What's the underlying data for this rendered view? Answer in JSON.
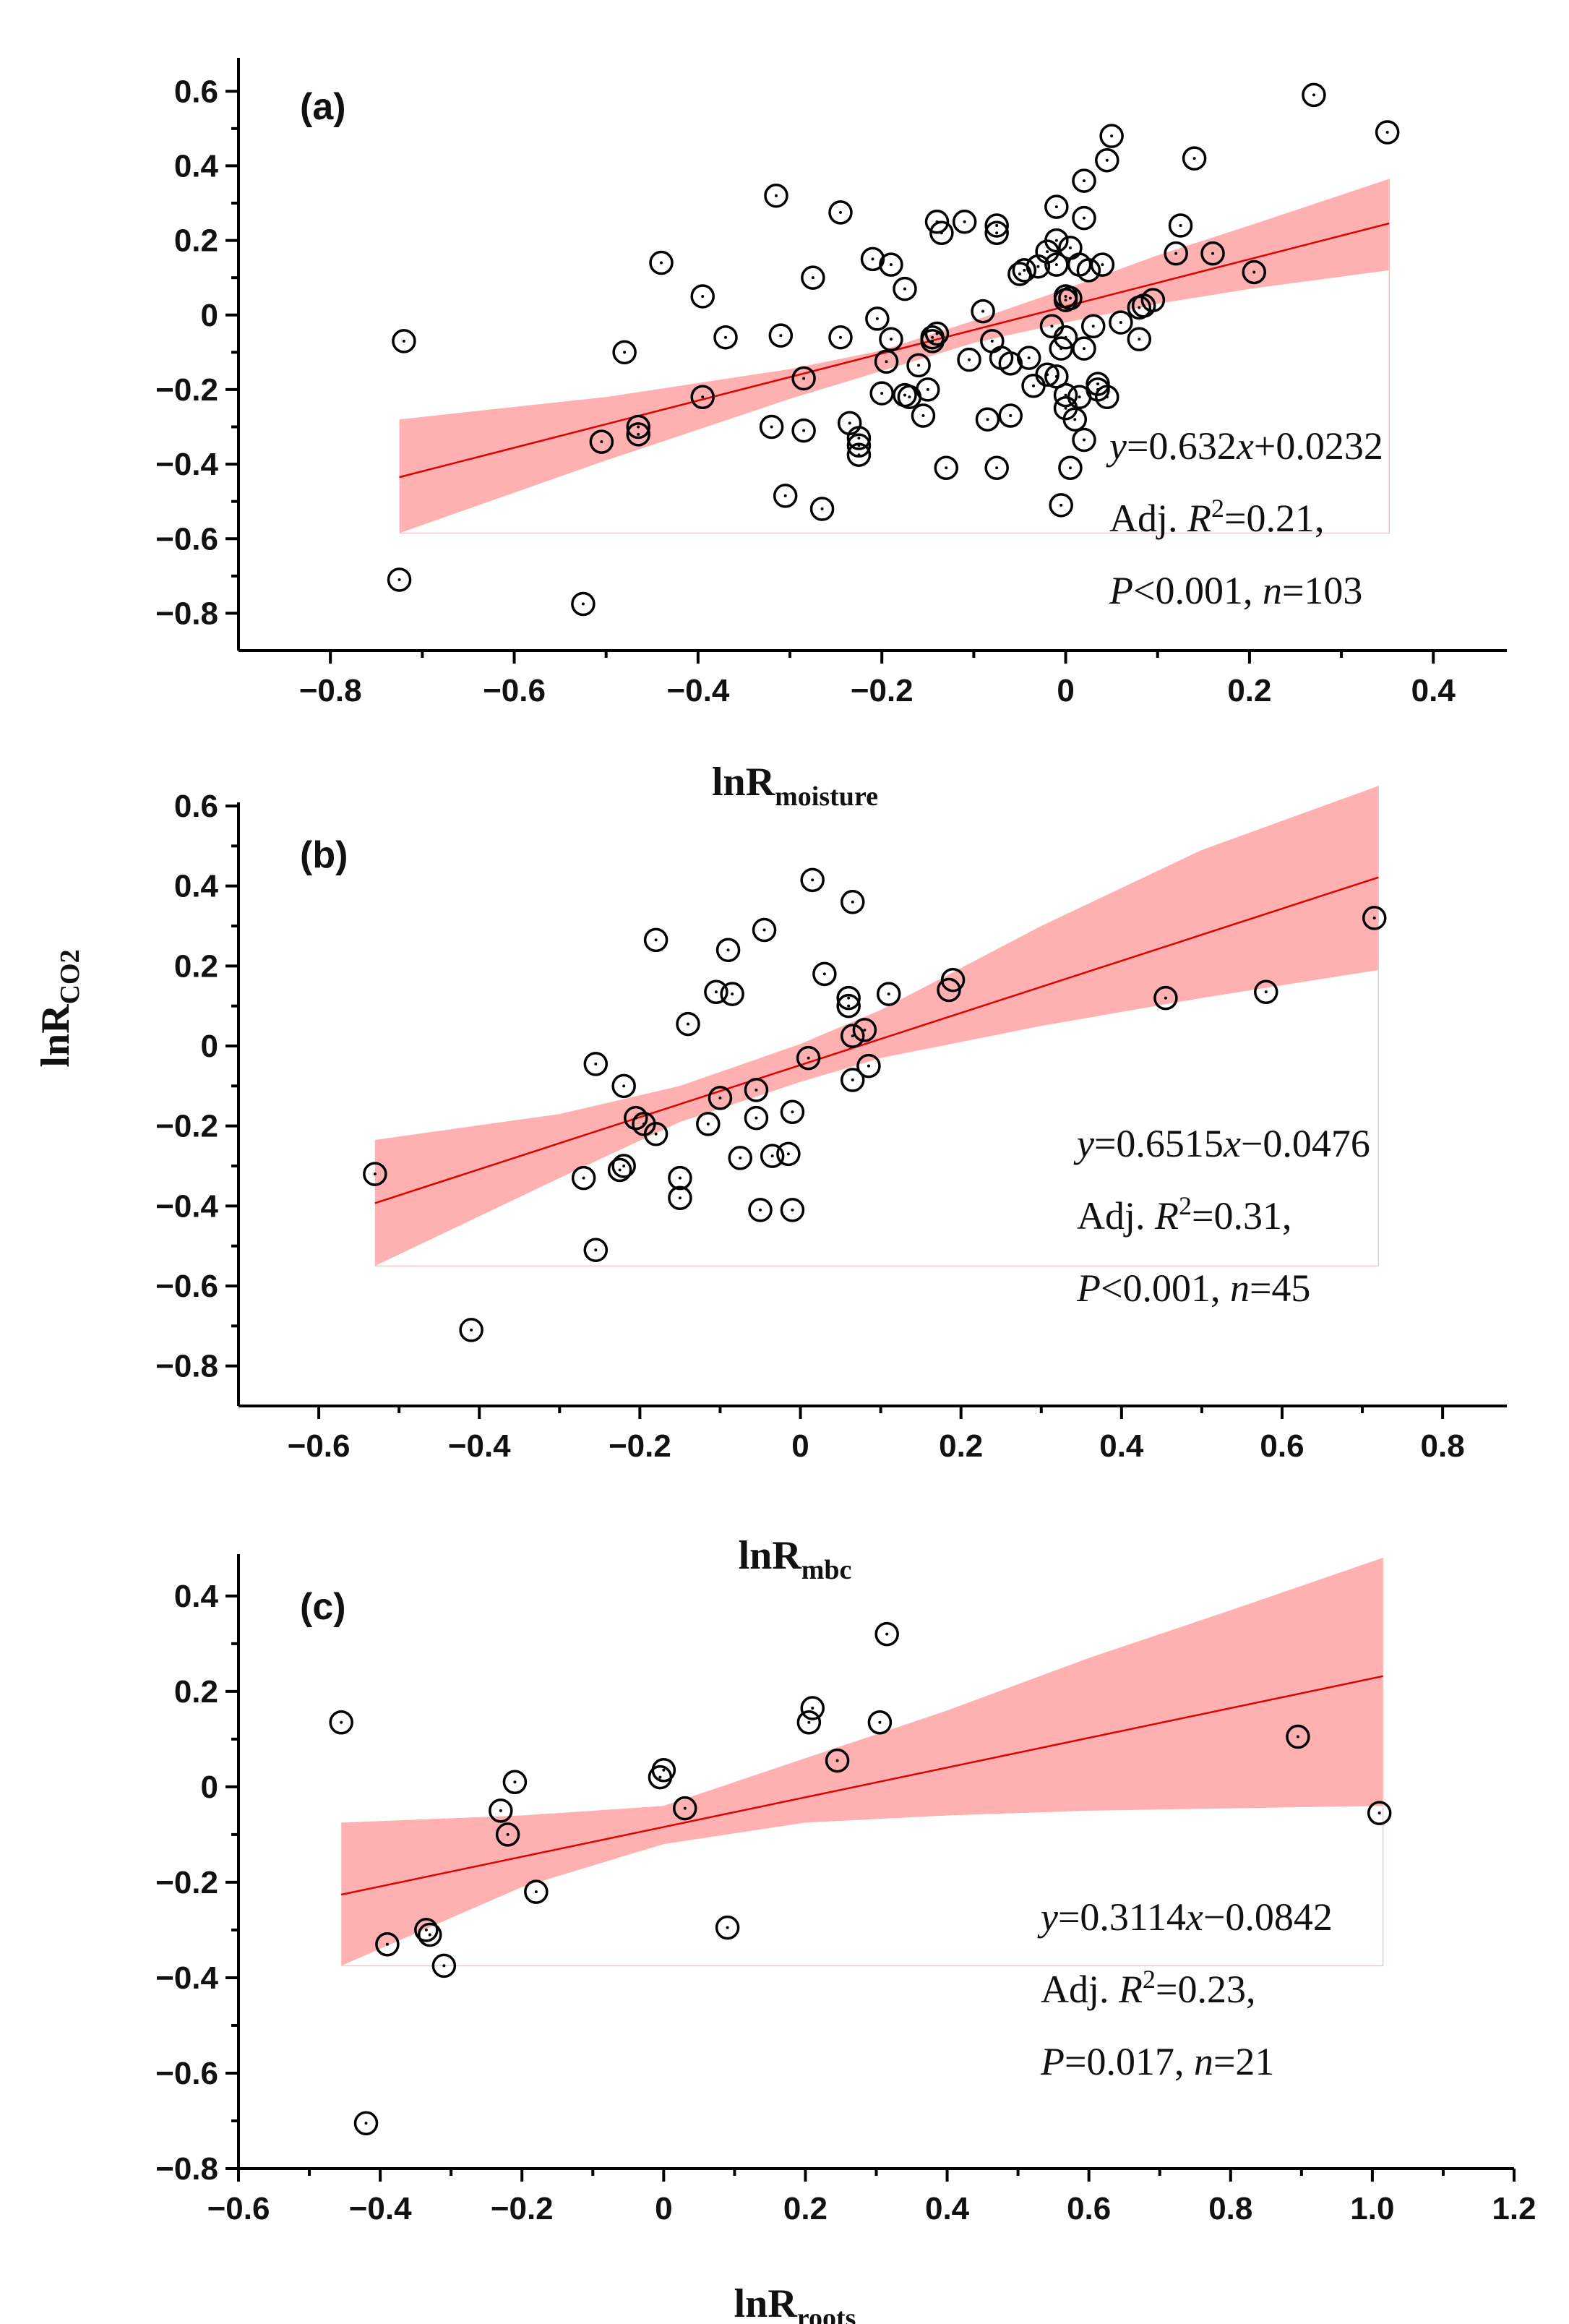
{
  "colors": {
    "fit_line": "#e00000",
    "ci_band": "#ffb0b0",
    "marker": "#000000"
  },
  "y_axis_label": {
    "main": "lnR",
    "sub": "CO2"
  },
  "chart_data": [
    {
      "type": "scatter",
      "panel_label": "(a)",
      "xlabel": {
        "main": "lnR",
        "sub": "moisture"
      },
      "xlim": [
        -0.9,
        0.48
      ],
      "ylim": [
        -0.9,
        0.68
      ],
      "xticks": [
        -0.8,
        -0.6,
        -0.4,
        -0.2,
        0,
        0.2,
        0.4
      ],
      "yticks": [
        0.6,
        0.4,
        0.2,
        0,
        -0.2,
        -0.4,
        -0.6,
        -0.8
      ],
      "fit": {
        "slope": 0.632,
        "intercept": 0.0232,
        "x_range": [
          -0.725,
          0.352
        ]
      },
      "ci": [
        {
          "x": -0.725,
          "lo": -0.585,
          "hi": -0.28
        },
        {
          "x": -0.5,
          "lo": -0.39,
          "hi": -0.22
        },
        {
          "x": -0.3,
          "lo": -0.225,
          "hi": -0.145
        },
        {
          "x": -0.2,
          "lo": -0.15,
          "hi": -0.095
        },
        {
          "x": -0.1,
          "lo": -0.075,
          "hi": -0.015
        },
        {
          "x": 0.0,
          "lo": -0.02,
          "hi": 0.07
        },
        {
          "x": 0.1,
          "lo": 0.03,
          "hi": 0.16
        },
        {
          "x": 0.2,
          "lo": 0.07,
          "hi": 0.24
        },
        {
          "x": 0.352,
          "lo": 0.12,
          "hi": 0.365
        }
      ],
      "equation": {
        "y": "y",
        "mid1": "=0.632",
        "x": "x",
        "mid2": "+0.0232"
      },
      "stat_r2": {
        "pre": "Adj. ",
        "r": "R",
        "sup": "2",
        "post": "=0.21,"
      },
      "stat_p": {
        "p": "P",
        "mid": "<0.001, ",
        "n": "n",
        "post": "=103"
      },
      "points": [
        [
          -0.72,
          -0.07
        ],
        [
          -0.725,
          -0.71
        ],
        [
          -0.525,
          -0.775
        ],
        [
          -0.505,
          -0.34
        ],
        [
          -0.465,
          -0.3
        ],
        [
          -0.465,
          -0.32
        ],
        [
          -0.48,
          -0.1
        ],
        [
          -0.44,
          0.14
        ],
        [
          -0.395,
          0.05
        ],
        [
          -0.395,
          -0.22
        ],
        [
          -0.37,
          -0.06
        ],
        [
          -0.315,
          0.32
        ],
        [
          -0.31,
          -0.055
        ],
        [
          -0.305,
          -0.485
        ],
        [
          -0.32,
          -0.3
        ],
        [
          -0.285,
          -0.31
        ],
        [
          -0.285,
          -0.17
        ],
        [
          -0.275,
          0.1
        ],
        [
          -0.265,
          -0.52
        ],
        [
          -0.245,
          0.275
        ],
        [
          -0.245,
          -0.06
        ],
        [
          -0.235,
          -0.29
        ],
        [
          -0.225,
          -0.35
        ],
        [
          -0.225,
          -0.33
        ],
        [
          -0.225,
          -0.375
        ],
        [
          -0.21,
          0.15
        ],
        [
          -0.205,
          -0.01
        ],
        [
          -0.2,
          -0.21
        ],
        [
          -0.195,
          -0.125
        ],
        [
          -0.19,
          0.135
        ],
        [
          -0.19,
          -0.065
        ],
        [
          -0.175,
          0.07
        ],
        [
          -0.175,
          -0.215
        ],
        [
          -0.17,
          -0.22
        ],
        [
          -0.16,
          -0.135
        ],
        [
          -0.155,
          -0.27
        ],
        [
          -0.15,
          -0.2
        ],
        [
          -0.145,
          -0.07
        ],
        [
          -0.14,
          -0.05
        ],
        [
          -0.14,
          0.25
        ],
        [
          -0.135,
          0.22
        ],
        [
          -0.13,
          -0.41
        ],
        [
          -0.11,
          0.25
        ],
        [
          -0.105,
          -0.12
        ],
        [
          -0.09,
          0.01
        ],
        [
          -0.085,
          -0.28
        ],
        [
          -0.08,
          -0.07
        ],
        [
          -0.075,
          0.24
        ],
        [
          -0.075,
          0.22
        ],
        [
          -0.075,
          -0.41
        ],
        [
          -0.07,
          -0.115
        ],
        [
          -0.06,
          -0.13
        ],
        [
          -0.06,
          -0.27
        ],
        [
          -0.05,
          0.11
        ],
        [
          -0.045,
          0.12
        ],
        [
          -0.04,
          -0.115
        ],
        [
          -0.035,
          -0.19
        ],
        [
          -0.03,
          0.13
        ],
        [
          -0.02,
          0.17
        ],
        [
          -0.02,
          -0.16
        ],
        [
          -0.015,
          -0.03
        ],
        [
          -0.01,
          0.2
        ],
        [
          -0.01,
          0.29
        ],
        [
          -0.01,
          -0.165
        ],
        [
          -0.01,
          0.135
        ],
        [
          -0.005,
          -0.51
        ],
        [
          -0.005,
          -0.09
        ],
        [
          0.0,
          -0.25
        ],
        [
          0.0,
          -0.06
        ],
        [
          0.0,
          0.05
        ],
        [
          0.0,
          0.04
        ],
        [
          0.0,
          -0.215
        ],
        [
          0.005,
          0.18
        ],
        [
          0.005,
          -0.41
        ],
        [
          0.01,
          -0.28
        ],
        [
          0.015,
          0.135
        ],
        [
          0.015,
          -0.22
        ],
        [
          0.02,
          0.36
        ],
        [
          0.02,
          -0.09
        ],
        [
          0.02,
          0.26
        ],
        [
          0.02,
          -0.335
        ],
        [
          0.025,
          0.12
        ],
        [
          0.03,
          -0.03
        ],
        [
          0.035,
          -0.185
        ],
        [
          0.035,
          -0.2
        ],
        [
          0.04,
          0.135
        ],
        [
          0.045,
          -0.22
        ],
        [
          0.045,
          0.415
        ],
        [
          0.05,
          0.48
        ],
        [
          0.06,
          -0.02
        ],
        [
          0.08,
          -0.065
        ],
        [
          0.08,
          0.02
        ],
        [
          0.095,
          0.04
        ],
        [
          0.12,
          0.165
        ],
        [
          0.125,
          0.24
        ],
        [
          0.14,
          0.42
        ],
        [
          0.16,
          0.165
        ],
        [
          0.205,
          0.115
        ],
        [
          0.27,
          0.59
        ],
        [
          0.35,
          0.49
        ],
        [
          0.085,
          0.025
        ],
        [
          -0.145,
          -0.06
        ],
        [
          0.005,
          0.045
        ]
      ]
    },
    {
      "type": "scatter",
      "panel_label": "(b)",
      "xlabel": {
        "main": "lnR",
        "sub": "mbc"
      },
      "xlim": [
        -0.7,
        0.88
      ],
      "ylim": [
        -0.9,
        0.6
      ],
      "xticks": [
        -0.6,
        -0.4,
        -0.2,
        0,
        0.2,
        0.4,
        0.6,
        0.8
      ],
      "yticks": [
        0.6,
        0.4,
        0.2,
        0,
        -0.2,
        -0.4,
        -0.6,
        -0.8
      ],
      "fit": {
        "slope": 0.6515,
        "intercept": -0.0476,
        "x_range": [
          -0.53,
          0.72
        ]
      },
      "ci": [
        {
          "x": -0.53,
          "lo": -0.55,
          "hi": -0.235
        },
        {
          "x": -0.3,
          "lo": -0.33,
          "hi": -0.17
        },
        {
          "x": -0.15,
          "lo": -0.19,
          "hi": -0.1
        },
        {
          "x": 0.0,
          "lo": -0.09,
          "hi": 0.005
        },
        {
          "x": 0.1,
          "lo": -0.03,
          "hi": 0.09
        },
        {
          "x": 0.3,
          "lo": 0.05,
          "hi": 0.3
        },
        {
          "x": 0.5,
          "lo": 0.12,
          "hi": 0.49
        },
        {
          "x": 0.72,
          "lo": 0.19,
          "hi": 0.65
        }
      ],
      "equation": {
        "y": "y",
        "mid1": "=0.6515",
        "x": "x",
        "mid2": "−0.0476"
      },
      "stat_r2": {
        "pre": "Adj. ",
        "r": "R",
        "sup": "2",
        "post": "=0.31,"
      },
      "stat_p": {
        "p": "P",
        "mid": "<0.001, ",
        "n": "n",
        "post": "=45"
      },
      "points": [
        [
          -0.53,
          -0.32
        ],
        [
          -0.41,
          -0.71
        ],
        [
          -0.27,
          -0.33
        ],
        [
          -0.255,
          -0.51
        ],
        [
          -0.255,
          -0.045
        ],
        [
          -0.225,
          -0.31
        ],
        [
          -0.22,
          -0.1
        ],
        [
          -0.22,
          -0.3
        ],
        [
          -0.205,
          -0.18
        ],
        [
          -0.195,
          -0.195
        ],
        [
          -0.18,
          -0.22
        ],
        [
          -0.18,
          0.265
        ],
        [
          -0.15,
          -0.33
        ],
        [
          -0.15,
          -0.38
        ],
        [
          -0.14,
          0.055
        ],
        [
          -0.115,
          -0.195
        ],
        [
          -0.105,
          0.135
        ],
        [
          -0.1,
          -0.13
        ],
        [
          -0.09,
          0.24
        ],
        [
          -0.085,
          0.13
        ],
        [
          -0.075,
          -0.28
        ],
        [
          -0.055,
          -0.11
        ],
        [
          -0.055,
          -0.18
        ],
        [
          -0.05,
          -0.41
        ],
        [
          -0.045,
          0.29
        ],
        [
          -0.035,
          -0.275
        ],
        [
          -0.01,
          -0.165
        ],
        [
          -0.01,
          -0.41
        ],
        [
          -0.015,
          -0.27
        ],
        [
          0.01,
          -0.03
        ],
        [
          0.015,
          0.415
        ],
        [
          0.03,
          0.18
        ],
        [
          0.06,
          0.12
        ],
        [
          0.06,
          0.1
        ],
        [
          0.065,
          0.025
        ],
        [
          0.065,
          -0.085
        ],
        [
          0.065,
          0.36
        ],
        [
          0.08,
          0.04
        ],
        [
          0.085,
          -0.05
        ],
        [
          0.11,
          0.13
        ],
        [
          0.185,
          0.14
        ],
        [
          0.19,
          0.165
        ],
        [
          0.455,
          0.12
        ],
        [
          0.58,
          0.135
        ],
        [
          0.715,
          0.32
        ]
      ]
    },
    {
      "type": "scatter",
      "panel_label": "(c)",
      "xlabel": {
        "main": "lnR",
        "sub": "roots"
      },
      "xlim": [
        -0.6,
        1.2
      ],
      "ylim": [
        -0.8,
        0.48
      ],
      "xticks": [
        -0.6,
        -0.4,
        -0.2,
        0,
        0.2,
        0.4,
        0.6,
        0.8,
        1.0,
        1.2
      ],
      "yticks": [
        0.4,
        0.2,
        0,
        -0.2,
        -0.4,
        -0.6,
        -0.8
      ],
      "fit": {
        "slope": 0.3114,
        "intercept": -0.0842,
        "x_range": [
          -0.455,
          1.015
        ]
      },
      "ci": [
        {
          "x": -0.455,
          "lo": -0.375,
          "hi": -0.075
        },
        {
          "x": -0.2,
          "lo": -0.21,
          "hi": -0.06
        },
        {
          "x": 0.0,
          "lo": -0.12,
          "hi": -0.04
        },
        {
          "x": 0.2,
          "lo": -0.075,
          "hi": 0.06
        },
        {
          "x": 0.4,
          "lo": -0.06,
          "hi": 0.16
        },
        {
          "x": 0.6,
          "lo": -0.05,
          "hi": 0.27
        },
        {
          "x": 0.8,
          "lo": -0.045,
          "hi": 0.37
        },
        {
          "x": 1.015,
          "lo": -0.04,
          "hi": 0.48
        }
      ],
      "equation": {
        "y": "y",
        "mid1": "=0.3114",
        "x": "x",
        "mid2": "−0.0842"
      },
      "stat_r2": {
        "pre": "Adj. ",
        "r": "R",
        "sup": "2",
        "post": "=0.23,"
      },
      "stat_p": {
        "p": "P",
        "mid": "=0.017, ",
        "n": "n",
        "post": "=21"
      },
      "points": [
        [
          -0.455,
          0.135
        ],
        [
          -0.42,
          -0.705
        ],
        [
          -0.39,
          -0.33
        ],
        [
          -0.33,
          -0.31
        ],
        [
          -0.335,
          -0.3
        ],
        [
          -0.31,
          -0.375
        ],
        [
          -0.23,
          -0.05
        ],
        [
          -0.22,
          -0.1
        ],
        [
          -0.21,
          0.01
        ],
        [
          -0.18,
          -0.22
        ],
        [
          -0.005,
          0.02
        ],
        [
          0.0,
          0.035
        ],
        [
          0.03,
          -0.045
        ],
        [
          0.09,
          -0.295
        ],
        [
          0.205,
          0.135
        ],
        [
          0.21,
          0.165
        ],
        [
          0.245,
          0.055
        ],
        [
          0.305,
          0.135
        ],
        [
          0.315,
          0.32
        ],
        [
          0.895,
          0.105
        ],
        [
          1.01,
          -0.055
        ]
      ]
    }
  ]
}
